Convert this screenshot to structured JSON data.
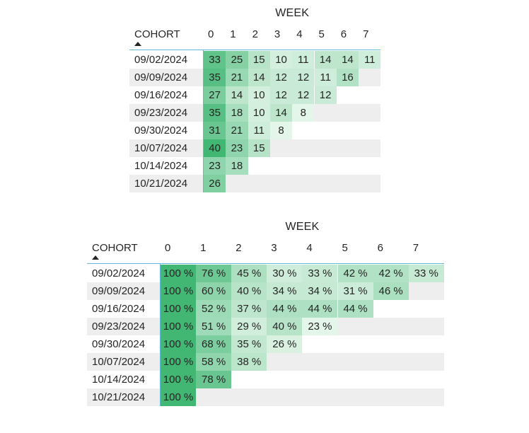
{
  "colors": {
    "accent_line": "#65b9d8",
    "row_band": "#eeeeee",
    "heat_low": "#e4f5ea",
    "heat_high": "#41b773"
  },
  "counts_matrix": {
    "column_title": "WEEK",
    "row_header": "COHORT",
    "row_header_sort_icon": "sort-ascending-triangle",
    "weeks": [
      "0",
      "1",
      "2",
      "3",
      "4",
      "5",
      "6",
      "7"
    ],
    "rows": [
      {
        "cohort": "09/02/2024",
        "values": [
          "33",
          "25",
          "15",
          "10",
          "11",
          "14",
          "14",
          "11"
        ]
      },
      {
        "cohort": "09/09/2024",
        "values": [
          "35",
          "21",
          "14",
          "12",
          "12",
          "11",
          "16"
        ]
      },
      {
        "cohort": "09/16/2024",
        "values": [
          "27",
          "14",
          "10",
          "12",
          "12",
          "12"
        ]
      },
      {
        "cohort": "09/23/2024",
        "values": [
          "35",
          "18",
          "10",
          "14",
          "8"
        ]
      },
      {
        "cohort": "09/30/2024",
        "values": [
          "31",
          "21",
          "11",
          "8"
        ]
      },
      {
        "cohort": "10/07/2024",
        "values": [
          "40",
          "23",
          "15"
        ]
      },
      {
        "cohort": "10/14/2024",
        "values": [
          "23",
          "18"
        ]
      },
      {
        "cohort": "10/21/2024",
        "values": [
          "26"
        ]
      }
    ]
  },
  "percent_matrix": {
    "column_title": "WEEK",
    "row_header": "COHORT",
    "row_header_sort_icon": "sort-ascending-triangle",
    "weeks": [
      "0",
      "1",
      "2",
      "3",
      "4",
      "5",
      "6",
      "7"
    ],
    "rows": [
      {
        "cohort": "09/02/2024",
        "values": [
          "100 %",
          "76 %",
          "45 %",
          "30 %",
          "33 %",
          "42 %",
          "42 %",
          "33 %"
        ]
      },
      {
        "cohort": "09/09/2024",
        "values": [
          "100 %",
          "60 %",
          "40 %",
          "34 %",
          "34 %",
          "31 %",
          "46 %"
        ]
      },
      {
        "cohort": "09/16/2024",
        "values": [
          "100 %",
          "52 %",
          "37 %",
          "44 %",
          "44 %",
          "44 %"
        ]
      },
      {
        "cohort": "09/23/2024",
        "values": [
          "100 %",
          "51 %",
          "29 %",
          "40 %",
          "23 %"
        ]
      },
      {
        "cohort": "09/30/2024",
        "values": [
          "100 %",
          "68 %",
          "35 %",
          "26 %"
        ]
      },
      {
        "cohort": "10/07/2024",
        "values": [
          "100 %",
          "58 %",
          "38 %"
        ]
      },
      {
        "cohort": "10/14/2024",
        "values": [
          "100 %",
          "78 %"
        ]
      },
      {
        "cohort": "10/21/2024",
        "values": [
          "100 %"
        ]
      }
    ]
  }
}
